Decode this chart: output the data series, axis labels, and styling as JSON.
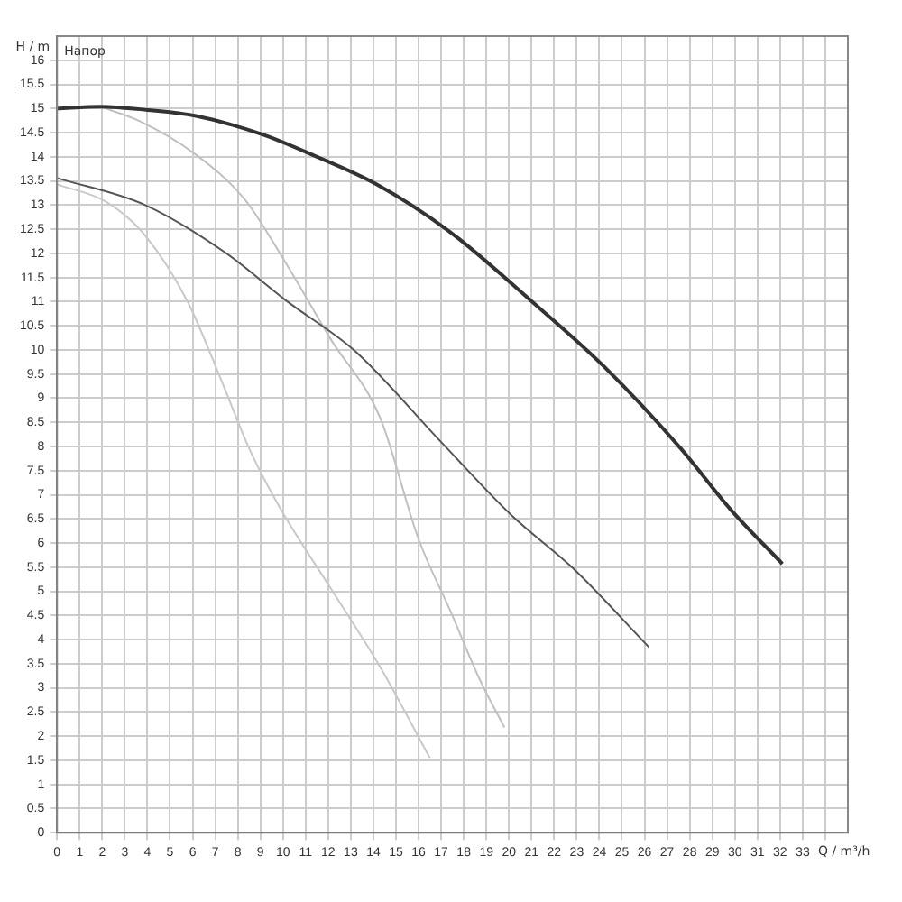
{
  "chart_data": {
    "type": "line",
    "xlabel": "Q / m³/h",
    "ylabel": "H / m",
    "annotations": [
      "Напор"
    ],
    "xlim": [
      0,
      35
    ],
    "xticks": [
      0,
      1,
      2,
      3,
      4,
      5,
      6,
      7,
      8,
      9,
      10,
      11,
      12,
      13,
      14,
      15,
      16,
      17,
      18,
      19,
      20,
      21,
      22,
      23,
      24,
      25,
      26,
      27,
      28,
      29,
      30,
      31,
      32,
      33,
      {
        "value": 34,
        "label": null
      }
    ],
    "ylim": [
      0,
      16.5
    ],
    "yticks": [
      0,
      0.5,
      1,
      1.5,
      2,
      2.5,
      3,
      3.5,
      4,
      4.5,
      5,
      5.5,
      6,
      6.5,
      7,
      7.5,
      8,
      8.5,
      9,
      9.5,
      10,
      10.5,
      11,
      11.5,
      12,
      12.5,
      13,
      13.5,
      14,
      14.5,
      15,
      15.5,
      16
    ],
    "grid": true,
    "marker": "none",
    "line_style": "solid",
    "series": [
      {
        "color": "#333333",
        "x": [
          0,
          1.9,
          4,
          6.1,
          9.1,
          11.3,
          14.1,
          17.4,
          20.9,
          24.2,
          27.6,
          29.8,
          32.1
        ],
        "values": [
          15,
          15.04,
          14.97,
          14.85,
          14.46,
          14.04,
          13.44,
          12.44,
          11.05,
          9.66,
          7.96,
          6.7,
          5.57
        ]
      },
      {
        "color": "#555555",
        "x": [
          0,
          3.9,
          7.4,
          10.2,
          13.2,
          17,
          20.1,
          22.9,
          26.2
        ],
        "values": [
          13.56,
          13,
          12.03,
          11,
          9.97,
          8.09,
          6.58,
          5.45,
          3.84
        ]
      },
      {
        "color": "#c0c0c0",
        "x": [
          1.9,
          3.6,
          6.1,
          8.3,
          10.2,
          12.1,
          14.3,
          16,
          17.4,
          18.7,
          19.8
        ],
        "values": [
          15.04,
          14.75,
          14.06,
          13.12,
          11.74,
          10.23,
          8.59,
          6.08,
          4.6,
          3.18,
          2.18
        ]
      },
      {
        "color": "#c8c8c8",
        "x": [
          0,
          2.2,
          3.9,
          5.8,
          7.4,
          8.5,
          9.9,
          12.1,
          14.3,
          16.5
        ],
        "values": [
          13.43,
          13.06,
          12.37,
          10.98,
          9.22,
          7.96,
          6.7,
          5.07,
          3.43,
          1.55
        ]
      }
    ]
  }
}
